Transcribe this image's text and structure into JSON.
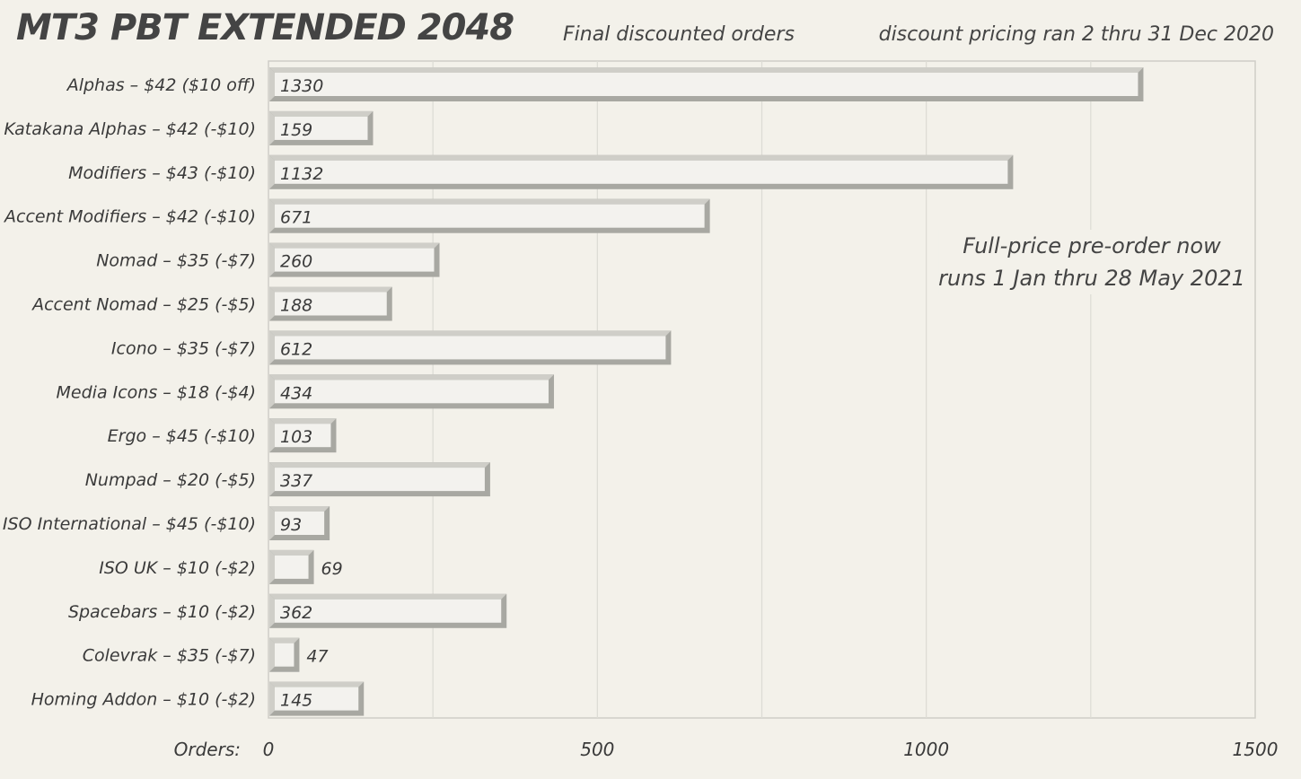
{
  "header": {
    "title": "MT3 PBT EXTENDED 2048",
    "subtitle": "Final discounted orders",
    "note": "discount pricing ran 2 thru 31 Dec 2020"
  },
  "annotation": {
    "line1": "Full-price pre-order now",
    "line2": "runs 1 Jan thru 28 May 2021"
  },
  "chart_data": {
    "type": "bar",
    "orientation": "horizontal",
    "title": "MT3 PBT EXTENDED 2048",
    "subtitle": "Final discounted orders",
    "xlabel": "Orders:",
    "ylabel": "",
    "xlim": [
      0,
      1500
    ],
    "xticks": [
      0,
      500,
      1000,
      1500
    ],
    "grid": true,
    "categories": [
      "Alphas – $42  ($10 off)",
      "Katakana Alphas – $42  (-$10)",
      "Modifiers – $43  (-$10)",
      "Accent Modifiers – $42  (-$10)",
      "Nomad – $35  (-$7)",
      "Accent Nomad – $25  (-$5)",
      "Icono – $35  (-$7)",
      "Media Icons – $18  (-$4)",
      "Ergo – $45  (-$10)",
      "Numpad – $20  (-$5)",
      "ISO International – $45  (-$10)",
      "ISO UK – $10  (-$2)",
      "Spacebars – $10  (-$2)",
      "Colevrak – $35  (-$7)",
      "Homing Addon – $10  (-$2)"
    ],
    "values": [
      1330,
      159,
      1132,
      671,
      260,
      188,
      612,
      434,
      103,
      337,
      93,
      69,
      362,
      47,
      145
    ],
    "colors": {
      "bar_face": "#f3f2ee",
      "bar_light": "#cfcec8",
      "bar_dark": "#a8a8a2",
      "grid": "#dcdbd4",
      "axis": "#cfcec8",
      "text": "#3a3a3a"
    }
  }
}
